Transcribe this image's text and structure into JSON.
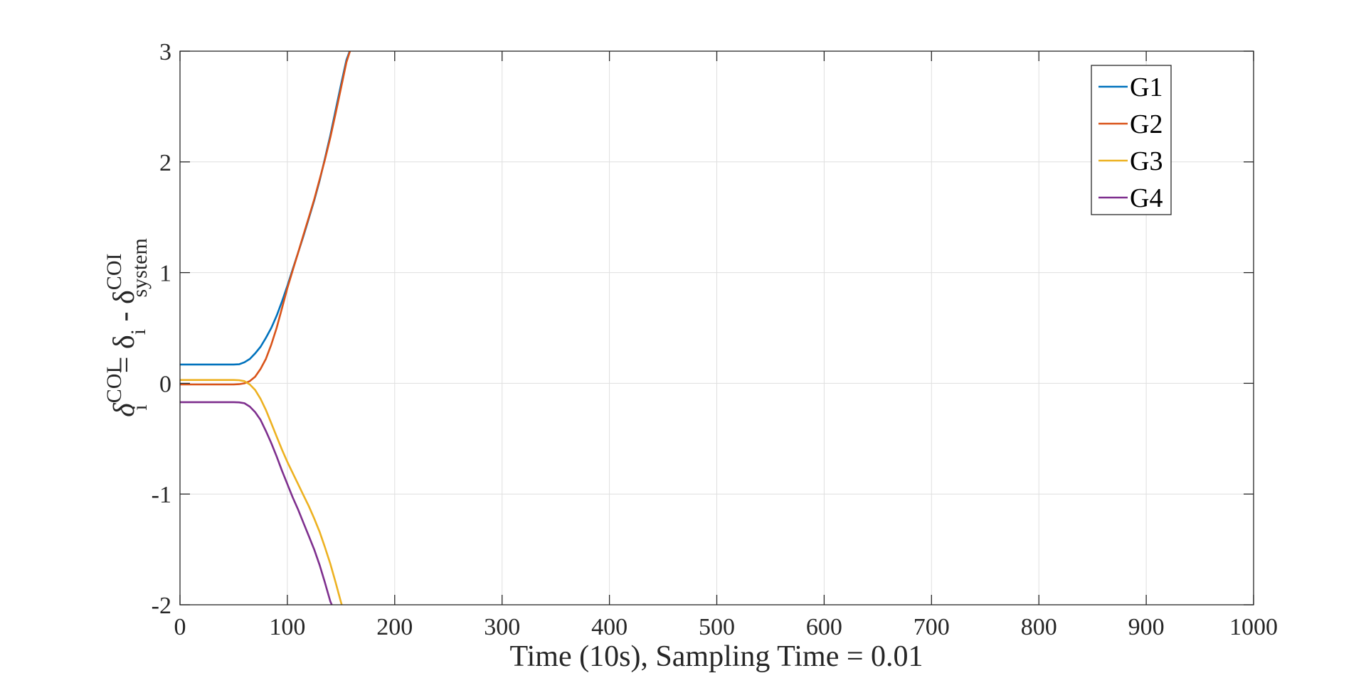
{
  "chart_data": {
    "type": "line",
    "xlabel": "Time (10s), Sampling Time = 0.01",
    "ylabel": {
      "main": "δ",
      "sup1": "COI",
      "sub1": "i",
      "eq": "= δ",
      "sub2": "i",
      "minus": " - δ",
      "sup2": "COI",
      "sub3": "system"
    },
    "xlim": [
      0,
      1000
    ],
    "ylim": [
      -2,
      3
    ],
    "xticks": [
      "0",
      "100",
      "200",
      "300",
      "400",
      "500",
      "600",
      "700",
      "800",
      "900",
      "1000"
    ],
    "yticks": [
      "-2",
      "-1",
      "0",
      "1",
      "2",
      "3"
    ],
    "grid": true,
    "legend_position": "top-right",
    "series": [
      {
        "name": "G1",
        "color": "#0072BD",
        "points": [
          [
            0,
            0.17
          ],
          [
            50,
            0.17
          ],
          [
            55,
            0.172
          ],
          [
            60,
            0.19
          ],
          [
            65,
            0.22
          ],
          [
            70,
            0.27
          ],
          [
            75,
            0.33
          ],
          [
            80,
            0.41
          ],
          [
            85,
            0.5
          ],
          [
            90,
            0.61
          ],
          [
            95,
            0.74
          ],
          [
            100,
            0.88
          ],
          [
            105,
            1.03
          ],
          [
            110,
            1.18
          ],
          [
            115,
            1.33
          ],
          [
            120,
            1.49
          ],
          [
            125,
            1.65
          ],
          [
            130,
            1.83
          ],
          [
            135,
            2.03
          ],
          [
            140,
            2.24
          ],
          [
            145,
            2.47
          ],
          [
            150,
            2.7
          ],
          [
            155,
            2.92
          ],
          [
            160,
            3.05
          ]
        ]
      },
      {
        "name": "G2",
        "color": "#D95319",
        "points": [
          [
            0,
            -0.01
          ],
          [
            50,
            -0.01
          ],
          [
            55,
            -0.008
          ],
          [
            60,
            0.0
          ],
          [
            65,
            0.02
          ],
          [
            70,
            0.06
          ],
          [
            75,
            0.13
          ],
          [
            80,
            0.22
          ],
          [
            85,
            0.35
          ],
          [
            90,
            0.5
          ],
          [
            95,
            0.68
          ],
          [
            100,
            0.86
          ],
          [
            105,
            1.02
          ],
          [
            110,
            1.18
          ],
          [
            115,
            1.34
          ],
          [
            120,
            1.5
          ],
          [
            125,
            1.66
          ],
          [
            130,
            1.84
          ],
          [
            135,
            2.02
          ],
          [
            140,
            2.22
          ],
          [
            145,
            2.44
          ],
          [
            150,
            2.67
          ],
          [
            155,
            2.9
          ],
          [
            160,
            3.05
          ]
        ]
      },
      {
        "name": "G3",
        "color": "#EDB120",
        "points": [
          [
            0,
            0.03
          ],
          [
            50,
            0.03
          ],
          [
            55,
            0.028
          ],
          [
            60,
            0.02
          ],
          [
            65,
            -0.01
          ],
          [
            70,
            -0.06
          ],
          [
            75,
            -0.14
          ],
          [
            80,
            -0.24
          ],
          [
            85,
            -0.36
          ],
          [
            90,
            -0.48
          ],
          [
            95,
            -0.6
          ],
          [
            100,
            -0.71
          ],
          [
            105,
            -0.81
          ],
          [
            110,
            -0.91
          ],
          [
            115,
            -1.01
          ],
          [
            120,
            -1.11
          ],
          [
            125,
            -1.22
          ],
          [
            130,
            -1.34
          ],
          [
            135,
            -1.48
          ],
          [
            140,
            -1.63
          ],
          [
            145,
            -1.8
          ],
          [
            150,
            -1.98
          ],
          [
            153,
            -2.08
          ]
        ]
      },
      {
        "name": "G4",
        "color": "#7E2F8E",
        "points": [
          [
            0,
            -0.17
          ],
          [
            50,
            -0.17
          ],
          [
            55,
            -0.172
          ],
          [
            60,
            -0.18
          ],
          [
            65,
            -0.21
          ],
          [
            70,
            -0.26
          ],
          [
            75,
            -0.33
          ],
          [
            80,
            -0.43
          ],
          [
            85,
            -0.54
          ],
          [
            90,
            -0.66
          ],
          [
            95,
            -0.79
          ],
          [
            100,
            -0.91
          ],
          [
            105,
            -1.03
          ],
          [
            110,
            -1.14
          ],
          [
            115,
            -1.26
          ],
          [
            120,
            -1.38
          ],
          [
            125,
            -1.5
          ],
          [
            130,
            -1.64
          ],
          [
            135,
            -1.8
          ],
          [
            140,
            -1.97
          ],
          [
            145,
            -2.08
          ]
        ]
      }
    ]
  }
}
